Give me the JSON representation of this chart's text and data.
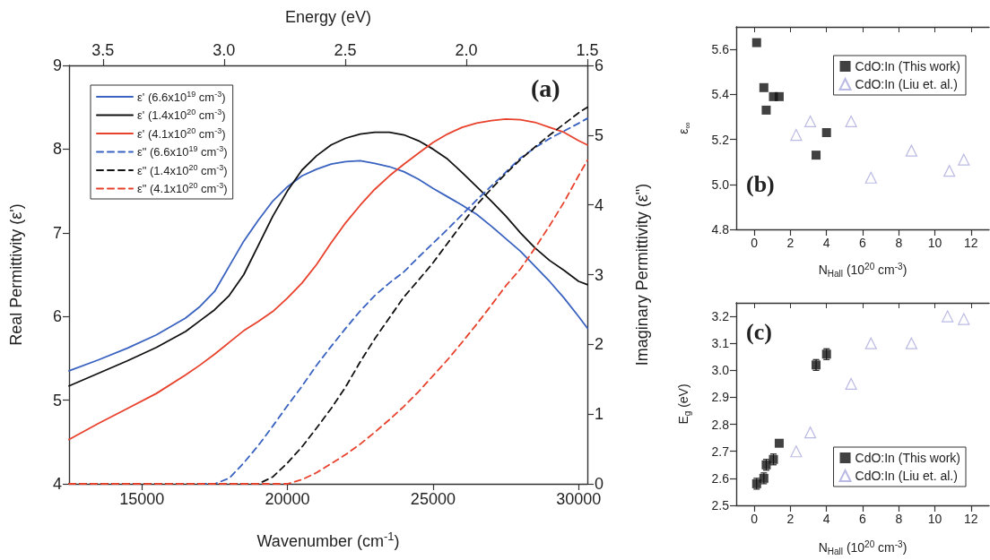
{
  "chart_data": [
    {
      "type": "line",
      "xlabel": "Wavenumber (cm$^{-1}$)",
      "ylabel": "Real Permittivity (ε')",
      "y2label": "Imaginary Permittivity (ε\")",
      "x2label": "Energy (eV)",
      "x": [
        12500,
        13500,
        14500,
        15500,
        16500,
        17000,
        17500,
        18000,
        18500,
        19000,
        19500,
        20000,
        20500,
        21000,
        21500,
        22000,
        22500,
        23000,
        23500,
        24000,
        24500,
        25000,
        25500,
        26000,
        26500,
        27000,
        27500,
        28000,
        28500,
        29000,
        29500,
        30000,
        30300
      ],
      "xlim": [
        12500,
        30300
      ],
      "xticks": [
        15000,
        20000,
        25000,
        30000
      ],
      "ylim": [
        4,
        9
      ],
      "yticks": [
        4,
        5,
        6,
        7,
        8,
        9
      ],
      "y2lim": [
        0,
        6
      ],
      "y2ticks": [
        0,
        1,
        2,
        3,
        4,
        5,
        6
      ],
      "x2lim": [
        3.64,
        1.5
      ],
      "x2ticks": [
        3.5,
        {
          "value": 3,
          "label": "3.0"
        },
        2.5,
        {
          "value": 2,
          "label": "2.0"
        },
        1.5
      ],
      "legend": "top left",
      "annotations": [
        "(a)"
      ],
      "series": [
        {
          "name": "ε' (6.6x10$^{19}$ cm$^{-3}$)",
          "color": "#3a62c0",
          "line_style": "solid",
          "values": [
            5.35,
            5.48,
            5.62,
            5.78,
            5.98,
            6.12,
            6.3,
            6.6,
            6.9,
            7.15,
            7.38,
            7.55,
            7.68,
            7.76,
            7.82,
            7.85,
            7.86,
            7.83,
            7.79,
            7.73,
            7.64,
            7.53,
            7.43,
            7.33,
            7.22,
            7.08,
            6.93,
            6.78,
            6.6,
            6.42,
            6.22,
            6.0,
            5.86
          ]
        },
        {
          "name": "ε' (1.4x10$^{20}$ cm$^{-3}$)",
          "color": "#111111",
          "line_style": "solid",
          "values": [
            5.17,
            5.32,
            5.47,
            5.63,
            5.82,
            5.95,
            6.08,
            6.25,
            6.5,
            6.85,
            7.2,
            7.5,
            7.75,
            7.92,
            8.05,
            8.13,
            8.18,
            8.2,
            8.2,
            8.17,
            8.1,
            8.0,
            7.88,
            7.72,
            7.55,
            7.38,
            7.2,
            7.0,
            6.82,
            6.67,
            6.55,
            6.42,
            6.38
          ]
        },
        {
          "name": "ε' (4.1x10$^{20}$ cm$^{-3}$)",
          "color": "#e8412c",
          "line_style": "solid",
          "values": [
            4.53,
            4.72,
            4.9,
            5.08,
            5.3,
            5.42,
            5.55,
            5.69,
            5.83,
            5.94,
            6.06,
            6.22,
            6.4,
            6.62,
            6.88,
            7.12,
            7.33,
            7.52,
            7.68,
            7.82,
            7.95,
            8.08,
            8.18,
            8.26,
            8.31,
            8.34,
            8.36,
            8.35,
            8.32,
            8.26,
            8.2,
            8.1,
            8.05
          ]
        },
        {
          "name": "ε\" (6.6x10$^{19}$ cm$^{-3}$)",
          "color": "#3a62c0",
          "line_style": "dashed",
          "axis": "y2",
          "values": [
            null,
            null,
            null,
            null,
            null,
            0,
            0,
            0.08,
            0.3,
            0.55,
            0.83,
            1.12,
            1.4,
            1.7,
            1.97,
            2.23,
            2.48,
            2.7,
            2.88,
            3.04,
            3.25,
            3.45,
            3.65,
            3.86,
            4.07,
            4.27,
            4.47,
            4.67,
            4.82,
            4.95,
            5.06,
            5.17,
            5.24
          ]
        },
        {
          "name": "ε\" (1.4x10$^{20}$ cm$^{-3}$)",
          "color": "#111111",
          "line_style": "dashed",
          "axis": "y2",
          "values": [
            0,
            0,
            0,
            0,
            0,
            0,
            0,
            0,
            0,
            0,
            0.1,
            0.3,
            0.53,
            0.8,
            1.08,
            1.39,
            1.75,
            2.08,
            2.38,
            2.68,
            2.92,
            3.17,
            3.45,
            3.73,
            4.0,
            4.23,
            4.45,
            4.65,
            4.83,
            5.0,
            5.16,
            5.32,
            5.4
          ]
        },
        {
          "name": "ε\" (4.1x10$^{20}$ cm$^{-3}$)",
          "color": "#e8412c",
          "line_style": "dashed",
          "axis": "y2",
          "values": [
            0,
            0,
            0,
            0,
            0,
            0,
            0,
            0,
            0,
            0,
            0,
            0,
            0.06,
            0.16,
            0.29,
            0.42,
            0.57,
            0.74,
            0.92,
            1.11,
            1.32,
            1.55,
            1.78,
            2.03,
            2.29,
            2.56,
            2.84,
            3.08,
            3.38,
            3.7,
            4.04,
            4.42,
            4.64
          ]
        }
      ]
    },
    {
      "type": "scatter",
      "xlabel": "N$_{Hall}$ (10$^{20}$ cm$^{-3}$)",
      "ylabel": "ε$_{∞}$",
      "xlim": [
        -1,
        13
      ],
      "xticks": [
        0,
        2,
        4,
        6,
        8,
        10,
        12
      ],
      "ylim": [
        4.8,
        5.7
      ],
      "yticks": [
        4.8,
        {
          "value": 5,
          "label": "5.0"
        },
        5.2,
        5.4,
        5.6
      ],
      "legend": "top right",
      "annotations": [
        "(b)"
      ],
      "series": [
        {
          "name": "CdO:In (This work)",
          "color": "#111111",
          "marker": "square",
          "x": [
            0.13,
            0.53,
            0.66,
            1.06,
            1.38,
            3.42,
            4.0
          ],
          "values": [
            5.63,
            5.43,
            5.33,
            5.39,
            5.39,
            5.13,
            5.23
          ]
        },
        {
          "name": "CdO:In (Liu et. al.)",
          "color": "#a9a9dd",
          "marker": "triangle",
          "x": [
            2.32,
            3.1,
            5.36,
            6.46,
            8.7,
            10.8,
            11.6
          ],
          "values": [
            5.22,
            5.28,
            5.28,
            5.03,
            5.15,
            5.06,
            5.11
          ]
        }
      ]
    },
    {
      "type": "scatter",
      "xlabel": "N$_{Hall}$ (10$^{20}$ cm$^{-3}$)",
      "ylabel": "E$_{g}$ (eV)",
      "xlim": [
        -1,
        13
      ],
      "xticks": [
        0,
        2,
        4,
        6,
        8,
        10,
        12
      ],
      "ylim": [
        2.5,
        3.25
      ],
      "yticks": [
        2.5,
        2.6,
        2.7,
        2.8,
        2.9,
        {
          "value": 3,
          "label": "3.0"
        },
        3.1,
        3.2
      ],
      "legend": "bottom right",
      "annotations": [
        "(c)"
      ],
      "series": [
        {
          "name": "CdO:In (This work)",
          "color": "#111111",
          "marker": "square",
          "x": [
            0.13,
            0.53,
            0.66,
            1.06,
            1.38,
            3.42,
            4.0
          ],
          "values": [
            2.58,
            2.6,
            2.65,
            2.67,
            2.73,
            3.02,
            3.06
          ],
          "errors": [
            0.02,
            0.02,
            0.02,
            0.02,
            null,
            0.02,
            0.02
          ]
        },
        {
          "name": "CdO:In (Liu et. al.)",
          "color": "#a9a9dd",
          "marker": "triangle",
          "x": [
            2.32,
            3.1,
            5.36,
            6.46,
            8.7,
            10.7,
            11.6
          ],
          "values": [
            2.7,
            2.77,
            2.95,
            3.1,
            3.1,
            3.2,
            3.19
          ]
        }
      ]
    }
  ]
}
